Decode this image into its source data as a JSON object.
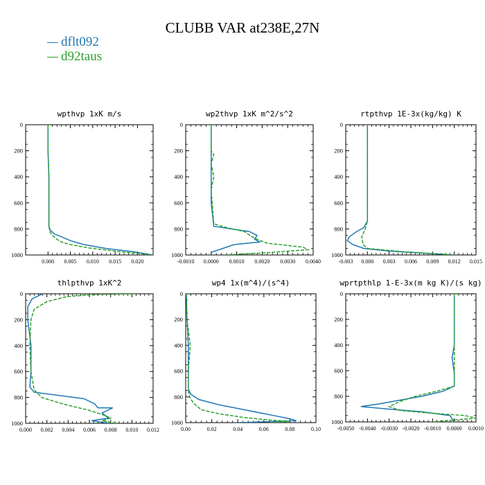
{
  "page": {
    "title": "CLUBB VAR at238E,27N"
  },
  "legend": [
    {
      "label": "dflt092",
      "color": "#1f77b4"
    },
    {
      "label": "d92taus",
      "color": "#2ca02c"
    }
  ],
  "chart_data": [
    {
      "type": "line",
      "title": "wpthvp   1xK m/s",
      "xlim": [
        -0.005,
        0.0235
      ],
      "ylim": [
        0,
        1000
      ],
      "y_inverted": true,
      "xticks": [
        0.0,
        0.005,
        0.01,
        0.015,
        0.02
      ],
      "xtick_labels": [
        "0.000",
        "0.005",
        "0.010",
        "0.015",
        "0.020"
      ],
      "yticks": [
        0,
        200,
        400,
        600,
        800,
        1000
      ],
      "series": [
        {
          "name": "dflt092",
          "color": "#1f77b4",
          "dash": false,
          "x": [
            0.0,
            0.0,
            0.0002,
            0.0002,
            0.0002,
            0.0005,
            0.0015,
            0.003,
            0.005,
            0.008,
            0.013,
            0.019,
            0.0235
          ],
          "y": [
            0,
            200,
            400,
            600,
            780,
            810,
            840,
            860,
            890,
            920,
            950,
            975,
            1000
          ]
        },
        {
          "name": "d92taus",
          "color": "#2ca02c",
          "dash": true,
          "x": [
            0.0,
            0.0,
            0.0002,
            0.0002,
            0.0002,
            0.0004,
            0.001,
            0.002,
            0.003,
            0.005,
            0.009,
            0.015,
            0.0235
          ],
          "y": [
            0,
            200,
            400,
            600,
            780,
            820,
            850,
            880,
            900,
            920,
            945,
            970,
            1000
          ]
        }
      ]
    },
    {
      "type": "line",
      "title": "wp2thvp   1xK m^2/s^2",
      "xlim": [
        -0.001,
        0.004
      ],
      "ylim": [
        0,
        1000
      ],
      "y_inverted": true,
      "xticks": [
        -0.001,
        0.0,
        0.001,
        0.002,
        0.003,
        0.004
      ],
      "xtick_labels": [
        "-0.0010",
        "0.0000",
        "0.0010",
        "0.0020",
        "0.0030",
        "0.0040"
      ],
      "yticks": [
        0,
        200,
        400,
        600,
        800,
        1000
      ],
      "series": [
        {
          "name": "dflt092",
          "color": "#1f77b4",
          "dash": false,
          "x": [
            0.0,
            0.0,
            0.0,
            0.0,
            0.0001,
            0.0008,
            0.0015,
            0.0018,
            0.0017,
            0.0019,
            0.0009,
            0.0003,
            0.0
          ],
          "y": [
            0,
            200,
            400,
            600,
            780,
            800,
            820,
            850,
            880,
            900,
            920,
            960,
            980
          ]
        },
        {
          "name": "d92taus",
          "color": "#2ca02c",
          "dash": true,
          "x": [
            0.0,
            0.0,
            0.0001,
            0.0,
            0.0001,
            0.0,
            0.0001,
            0.0006,
            0.0013,
            0.0016,
            0.0018,
            0.0022,
            0.0036,
            0.0038,
            0.002,
            0.0005
          ],
          "y": [
            0,
            200,
            230,
            300,
            400,
            500,
            760,
            790,
            820,
            860,
            880,
            910,
            940,
            960,
            985,
            1000
          ]
        }
      ]
    },
    {
      "type": "line",
      "title": "rtpthvp   1E-3x(kg/kg) K",
      "xlim": [
        -0.003,
        0.015
      ],
      "ylim": [
        0,
        1000
      ],
      "y_inverted": true,
      "xticks": [
        -0.003,
        0.0,
        0.003,
        0.006,
        0.009,
        0.012,
        0.015
      ],
      "xtick_labels": [
        "-0.003",
        "0.000",
        "0.003",
        "0.006",
        "0.009",
        "0.012",
        "0.015"
      ],
      "yticks": [
        0,
        200,
        400,
        600,
        800,
        1000
      ],
      "series": [
        {
          "name": "dflt092",
          "color": "#1f77b4",
          "dash": false,
          "x": [
            0.0,
            0.0,
            0.0,
            -0.0005,
            -0.0015,
            -0.0025,
            -0.0028,
            -0.002,
            -0.0005,
            0.003,
            0.012
          ],
          "y": [
            0,
            400,
            740,
            790,
            820,
            860,
            890,
            920,
            950,
            970,
            1000
          ]
        },
        {
          "name": "d92taus",
          "color": "#2ca02c",
          "dash": true,
          "x": [
            0.0,
            0.0,
            0.0,
            -0.0003,
            -0.0008,
            -0.0006,
            0.0,
            0.005,
            0.012
          ],
          "y": [
            0,
            400,
            740,
            800,
            860,
            920,
            950,
            975,
            1000
          ]
        }
      ]
    },
    {
      "type": "line",
      "title": "thlpthvp   1xK^2",
      "xlim": [
        0.0,
        0.012
      ],
      "ylim": [
        0,
        1000
      ],
      "y_inverted": true,
      "xticks": [
        0.0,
        0.002,
        0.004,
        0.006,
        0.008,
        0.01,
        0.012
      ],
      "xtick_labels": [
        "0.000",
        "0.002",
        "0.004",
        "0.006",
        "0.008",
        "0.010",
        "0.012"
      ],
      "yticks": [
        0,
        200,
        400,
        600,
        800,
        1000
      ],
      "series": [
        {
          "name": "dflt092",
          "color": "#1f77b4",
          "dash": false,
          "x": [
            0.0016,
            0.0006,
            0.0002,
            0.0002,
            0.0005,
            0.0005,
            0.0004,
            0.0008,
            0.0055,
            0.0065,
            0.0068,
            0.0082,
            0.0072,
            0.0078,
            0.0062,
            0.0078
          ],
          "y": [
            0,
            40,
            100,
            200,
            400,
            600,
            720,
            760,
            810,
            850,
            880,
            880,
            920,
            960,
            980,
            1000
          ]
        },
        {
          "name": "d92taus",
          "color": "#2ca02c",
          "dash": true,
          "x": [
            0.0102,
            0.007,
            0.004,
            0.002,
            0.0008,
            0.0005,
            0.0004,
            0.0005,
            0.0008,
            0.0015,
            0.0035,
            0.006,
            0.0075,
            0.008,
            0.0072,
            0.0085
          ],
          "y": [
            0,
            5,
            20,
            60,
            120,
            200,
            400,
            600,
            740,
            800,
            850,
            900,
            940,
            960,
            980,
            1000
          ]
        }
      ]
    },
    {
      "type": "line",
      "title": "wp4   1x(m^4)/(s^4)",
      "xlim": [
        0.0,
        0.1
      ],
      "ylim": [
        0,
        1000
      ],
      "y_inverted": true,
      "xticks": [
        0.0,
        0.02,
        0.04,
        0.06,
        0.08,
        0.1
      ],
      "xtick_labels": [
        "0.00",
        "0.02",
        "0.04",
        "0.06",
        "0.08",
        "0.10"
      ],
      "yticks": [
        0,
        200,
        400,
        600,
        800,
        1000
      ],
      "series": [
        {
          "name": "dflt092",
          "color": "#1f77b4",
          "dash": false,
          "x": [
            0.0005,
            0.001,
            0.002,
            0.002,
            0.002,
            0.004,
            0.01,
            0.025,
            0.045,
            0.065,
            0.08,
            0.085,
            0.04
          ],
          "y": [
            0,
            200,
            400,
            600,
            740,
            780,
            820,
            860,
            900,
            940,
            970,
            985,
            1000
          ]
        },
        {
          "name": "d92taus",
          "color": "#2ca02c",
          "dash": true,
          "x": [
            0.0005,
            0.001,
            0.0035,
            0.002,
            0.002,
            0.003,
            0.006,
            0.012,
            0.025,
            0.045,
            0.065,
            0.08,
            0.065
          ],
          "y": [
            0,
            200,
            400,
            600,
            750,
            800,
            850,
            900,
            930,
            960,
            980,
            990,
            1000
          ]
        }
      ]
    },
    {
      "type": "line",
      "title": "wprtpthlp   1-E-3x(m kg K)/(s kg)",
      "xlim": [
        -0.005,
        0.001
      ],
      "ylim": [
        0,
        1000
      ],
      "y_inverted": true,
      "xticks": [
        -0.005,
        -0.004,
        -0.003,
        -0.002,
        -0.001,
        0.0,
        0.001
      ],
      "xtick_labels": [
        "-0.0050",
        "-0.0040",
        "-0.0030",
        "-0.0020",
        "-0.0010",
        "0.0000",
        "0.0010"
      ],
      "yticks": [
        0,
        200,
        400,
        600,
        800,
        1000
      ],
      "series": [
        {
          "name": "dflt092",
          "color": "#1f77b4",
          "dash": false,
          "x": [
            0.0,
            0.0,
            -0.0001,
            0.0,
            0.0,
            -0.0005,
            -0.0015,
            -0.0025,
            -0.0035,
            -0.0043,
            -0.003,
            -0.0015,
            -0.0002,
            0.0
          ],
          "y": [
            0,
            400,
            500,
            620,
            720,
            760,
            800,
            830,
            860,
            880,
            900,
            920,
            950,
            1000
          ]
        },
        {
          "name": "d92taus",
          "color": "#2ca02c",
          "dash": true,
          "x": [
            0.0,
            0.0,
            0.0,
            -0.0008,
            -0.0018,
            -0.0025,
            -0.003,
            -0.0025,
            -0.0012,
            0.0005,
            0.001,
            -0.001
          ],
          "y": [
            0,
            400,
            720,
            760,
            800,
            840,
            880,
            910,
            930,
            950,
            970,
            1000
          ]
        }
      ]
    }
  ]
}
